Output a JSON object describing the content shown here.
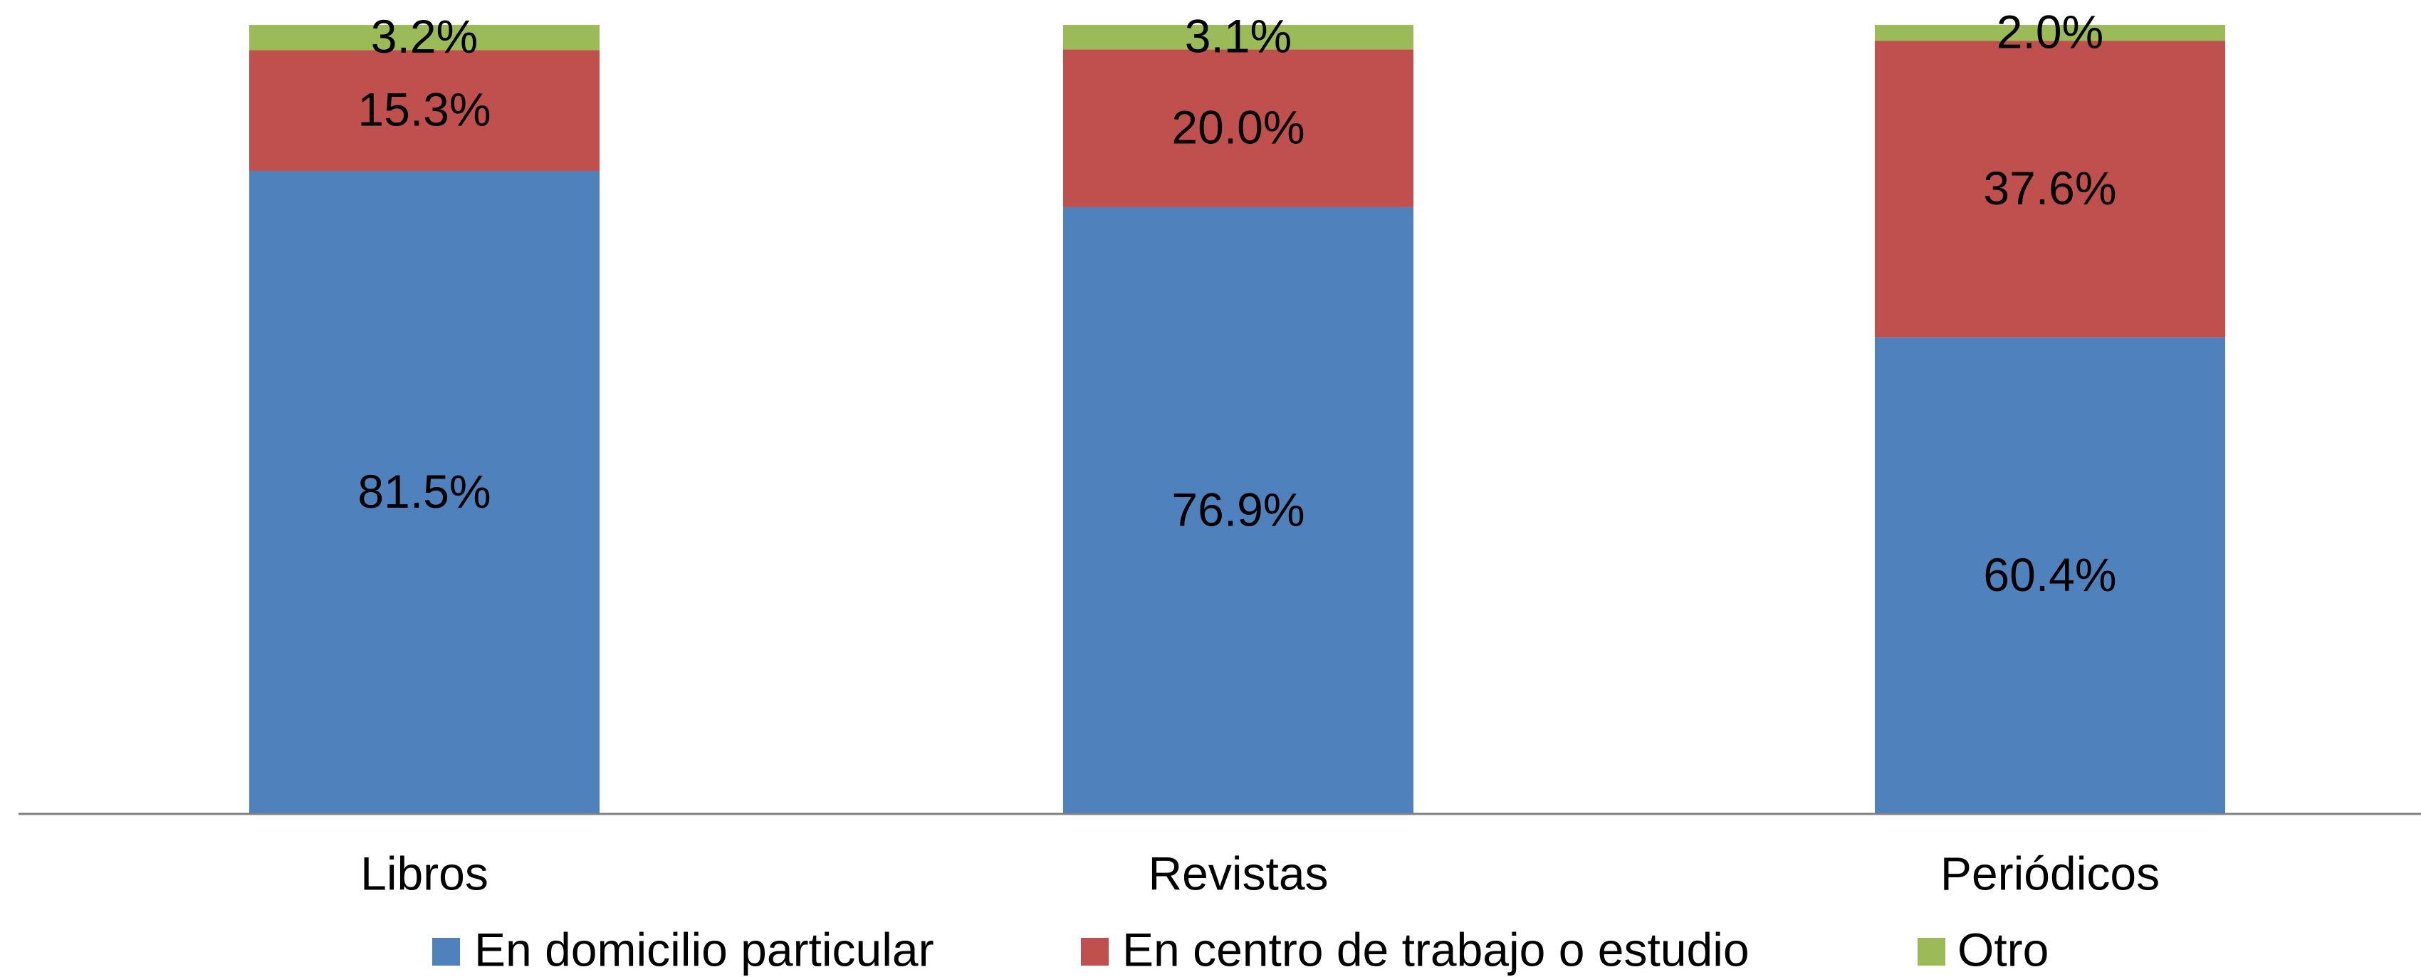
{
  "chart_data": {
    "type": "bar",
    "stacked": true,
    "categories": [
      "Libros",
      "Revistas",
      "Periódicos"
    ],
    "series": [
      {
        "name": "En domicilio particular",
        "color": "#4f81bd",
        "values": [
          81.5,
          76.9,
          60.4
        ],
        "value_labels": [
          "81.5%",
          "76.9%",
          "60.4%"
        ]
      },
      {
        "name": "En centro de trabajo o estudio",
        "color": "#c0504d",
        "values": [
          15.3,
          20.0,
          37.6
        ],
        "value_labels": [
          "15.3%",
          "20.0%",
          "37.6%"
        ]
      },
      {
        "name": "Otro",
        "color": "#9bbb59",
        "values": [
          3.2,
          3.1,
          2.0
        ],
        "value_labels": [
          "3.2%",
          "3.1%",
          "2.0%"
        ]
      }
    ],
    "ylim": [
      0,
      100
    ],
    "legend": "bottom"
  }
}
